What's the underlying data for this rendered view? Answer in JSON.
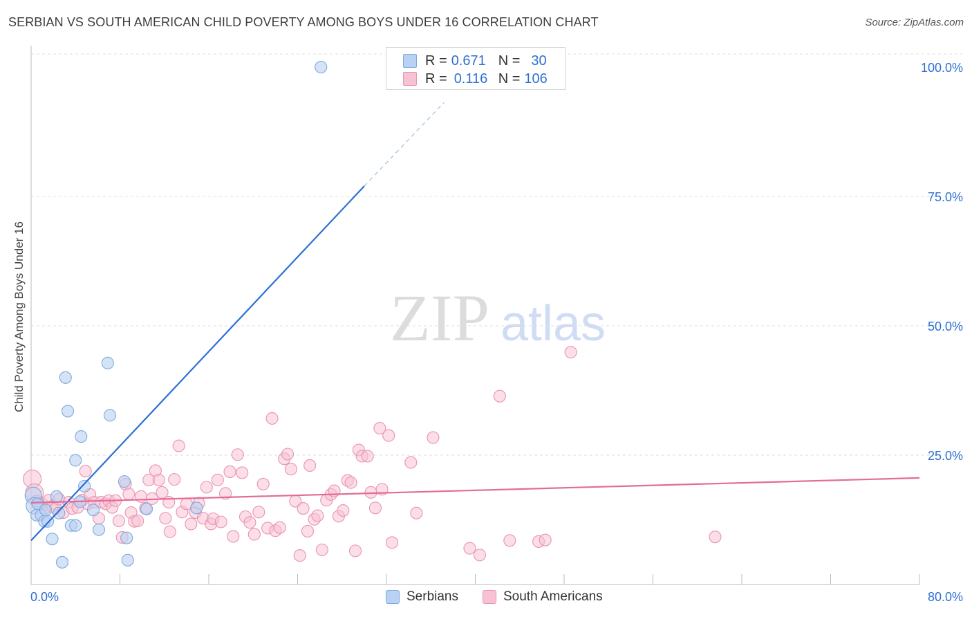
{
  "title": "SERBIAN VS SOUTH AMERICAN CHILD POVERTY AMONG BOYS UNDER 16 CORRELATION CHART",
  "source": "Source: ZipAtlas.com",
  "watermark": {
    "zip": "ZIP",
    "atlas": "atlas"
  },
  "legend": {
    "r_label": "R =",
    "n_label": "N =",
    "rows": [
      {
        "r": "0.671",
        "n": "30"
      },
      {
        "r": "0.116",
        "n": "106"
      }
    ]
  },
  "bottom_legend": [
    "Serbians",
    "South Americans"
  ],
  "colors": {
    "serbian_fill": "#b9d1f2",
    "serbian_stroke": "#7fa8de",
    "serbian_line": "#2b6fd6",
    "sa_fill": "#f7c3d3",
    "sa_stroke": "#e993b0",
    "sa_line": "#e36b98",
    "tick_label": "#2f6fd1"
  },
  "chart_data": {
    "type": "scatter",
    "title": "SERBIAN VS SOUTH AMERICAN CHILD POVERTY AMONG BOYS UNDER 16 CORRELATION CHART",
    "xlabel": "",
    "ylabel": "Child Poverty Among Boys Under 16",
    "xlim": [
      0,
      80
    ],
    "ylim": [
      0,
      100
    ],
    "x_tick_labels": [
      "0.0%",
      "80.0%"
    ],
    "y_ticks": [
      25,
      50,
      75,
      100
    ],
    "y_tick_labels": [
      "25.0%",
      "50.0%",
      "75.0%",
      "100.0%"
    ],
    "grid": true,
    "series": [
      {
        "name": "Serbians",
        "r": 0.671,
        "n": 30,
        "points": [
          [
            0.2,
            17.2
          ],
          [
            0.3,
            15.2
          ],
          [
            0.5,
            13.4
          ],
          [
            0.6,
            15.6
          ],
          [
            0.9,
            13.4
          ],
          [
            1.2,
            12.2
          ],
          [
            1.5,
            12.2
          ],
          [
            1.9,
            8.8
          ],
          [
            2.3,
            17.0
          ],
          [
            2.5,
            13.8
          ],
          [
            2.8,
            4.3
          ],
          [
            3.1,
            40.0
          ],
          [
            3.3,
            33.5
          ],
          [
            3.6,
            11.4
          ],
          [
            4.0,
            11.4
          ],
          [
            4.0,
            24.0
          ],
          [
            4.4,
            16.0
          ],
          [
            4.5,
            28.6
          ],
          [
            4.8,
            19.0
          ],
          [
            5.6,
            14.4
          ],
          [
            6.1,
            10.6
          ],
          [
            6.9,
            42.8
          ],
          [
            7.1,
            32.7
          ],
          [
            8.4,
            19.9
          ],
          [
            8.6,
            9.0
          ],
          [
            8.7,
            4.7
          ],
          [
            10.4,
            14.6
          ],
          [
            14.9,
            14.8
          ],
          [
            26.1,
            100.0
          ],
          [
            1.3,
            14.4
          ]
        ],
        "trend": {
          "x0": 0,
          "y0": 8.5,
          "x1": 30.0,
          "y1": 77.0,
          "dash_x_end": 37.2,
          "dash_y_end": 93.2
        }
      },
      {
        "name": "South Americans",
        "r": 0.116,
        "n": 106,
        "points": [
          [
            0.1,
            20.4
          ],
          [
            0.3,
            17.7
          ],
          [
            0.5,
            16.1
          ],
          [
            0.8,
            15.4
          ],
          [
            1.0,
            15.6
          ],
          [
            1.3,
            14.8
          ],
          [
            1.6,
            16.3
          ],
          [
            1.9,
            15.1
          ],
          [
            2.2,
            14.7
          ],
          [
            2.5,
            16.5
          ],
          [
            2.9,
            13.9
          ],
          [
            3.4,
            15.9
          ],
          [
            3.7,
            14.7
          ],
          [
            4.2,
            14.9
          ],
          [
            4.6,
            16.3
          ],
          [
            4.9,
            21.9
          ],
          [
            5.1,
            15.6
          ],
          [
            5.3,
            17.4
          ],
          [
            5.7,
            15.9
          ],
          [
            6.1,
            12.8
          ],
          [
            6.3,
            15.9
          ],
          [
            6.7,
            15.6
          ],
          [
            7.0,
            16.2
          ],
          [
            7.3,
            14.9
          ],
          [
            7.6,
            16.2
          ],
          [
            7.9,
            12.3
          ],
          [
            8.2,
            9.1
          ],
          [
            8.5,
            19.4
          ],
          [
            8.8,
            17.5
          ],
          [
            9.0,
            13.9
          ],
          [
            9.3,
            12.2
          ],
          [
            9.6,
            12.3
          ],
          [
            9.9,
            17.0
          ],
          [
            10.3,
            14.7
          ],
          [
            10.6,
            20.2
          ],
          [
            10.9,
            16.6
          ],
          [
            11.2,
            22.0
          ],
          [
            11.5,
            20.2
          ],
          [
            11.8,
            17.8
          ],
          [
            12.1,
            12.8
          ],
          [
            12.4,
            15.9
          ],
          [
            12.5,
            10.2
          ],
          [
            12.9,
            20.3
          ],
          [
            13.3,
            26.8
          ],
          [
            13.6,
            14.0
          ],
          [
            14.0,
            15.6
          ],
          [
            14.4,
            11.7
          ],
          [
            14.8,
            13.9
          ],
          [
            15.1,
            15.7
          ],
          [
            15.5,
            12.8
          ],
          [
            15.8,
            18.8
          ],
          [
            16.2,
            11.7
          ],
          [
            16.4,
            12.7
          ],
          [
            16.8,
            20.2
          ],
          [
            17.1,
            12.1
          ],
          [
            17.5,
            17.6
          ],
          [
            17.9,
            21.8
          ],
          [
            18.2,
            9.3
          ],
          [
            18.6,
            25.1
          ],
          [
            19.0,
            21.6
          ],
          [
            19.3,
            13.1
          ],
          [
            19.7,
            12.0
          ],
          [
            20.1,
            9.7
          ],
          [
            20.5,
            14.0
          ],
          [
            20.9,
            19.4
          ],
          [
            21.3,
            10.9
          ],
          [
            21.7,
            32.1
          ],
          [
            22.0,
            10.4
          ],
          [
            22.4,
            11.0
          ],
          [
            22.8,
            24.3
          ],
          [
            23.1,
            25.2
          ],
          [
            23.4,
            22.3
          ],
          [
            23.8,
            16.1
          ],
          [
            24.2,
            5.6
          ],
          [
            24.5,
            14.7
          ],
          [
            24.9,
            10.3
          ],
          [
            25.1,
            23.0
          ],
          [
            25.5,
            12.6
          ],
          [
            25.8,
            13.3
          ],
          [
            26.2,
            6.7
          ],
          [
            26.6,
            16.3
          ],
          [
            27.0,
            17.4
          ],
          [
            27.3,
            18.1
          ],
          [
            27.7,
            13.2
          ],
          [
            28.1,
            14.3
          ],
          [
            28.5,
            20.1
          ],
          [
            28.8,
            19.7
          ],
          [
            29.2,
            6.5
          ],
          [
            29.5,
            26.0
          ],
          [
            29.8,
            24.8
          ],
          [
            30.3,
            24.8
          ],
          [
            30.6,
            17.8
          ],
          [
            31.0,
            14.8
          ],
          [
            31.6,
            18.4
          ],
          [
            32.2,
            28.8
          ],
          [
            32.5,
            8.1
          ],
          [
            31.4,
            30.2
          ],
          [
            34.2,
            23.6
          ],
          [
            34.7,
            13.8
          ],
          [
            36.2,
            28.4
          ],
          [
            39.5,
            7.0
          ],
          [
            40.4,
            5.7
          ],
          [
            42.2,
            36.4
          ],
          [
            45.7,
            8.3
          ],
          [
            46.3,
            8.6
          ],
          [
            48.6,
            44.9
          ],
          [
            61.6,
            9.2
          ],
          [
            43.1,
            8.5
          ]
        ],
        "trend": {
          "x0": 0,
          "y0": 15.8,
          "x1": 80,
          "y1": 20.6
        }
      }
    ]
  }
}
